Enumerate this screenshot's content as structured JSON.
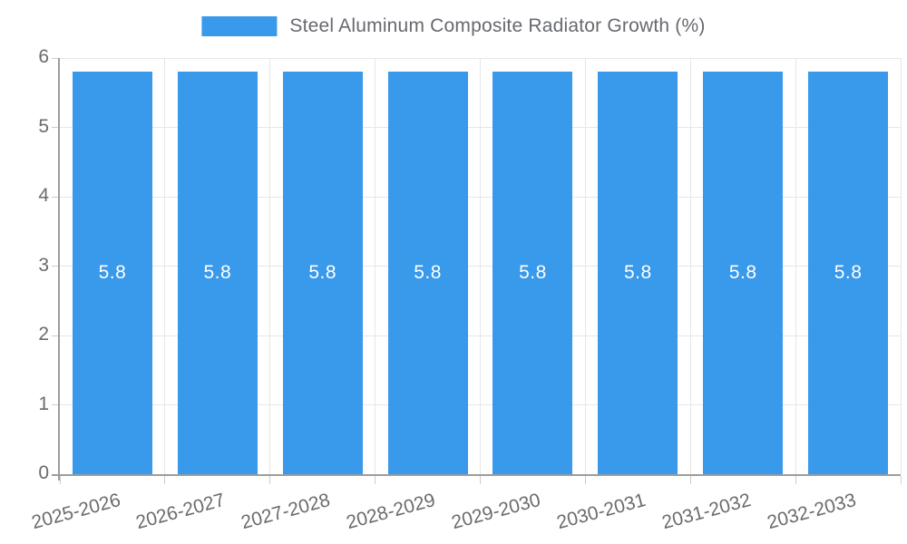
{
  "chart_data": {
    "type": "bar",
    "title": "Steel Aluminum Composite Radiator Growth (%)",
    "legend_label": "Steel Aluminum Composite Radiator Growth (%)",
    "legend_position": "top",
    "categories": [
      "2025-2026",
      "2026-2027",
      "2027-2028",
      "2028-2029",
      "2029-2030",
      "2030-2031",
      "2031-2032",
      "2032-2033"
    ],
    "values": [
      5.8,
      5.8,
      5.8,
      5.8,
      5.8,
      5.8,
      5.8,
      5.8
    ],
    "value_labels": [
      "5.8",
      "5.8",
      "5.8",
      "5.8",
      "5.8",
      "5.8",
      "5.8",
      "5.8"
    ],
    "xlabel": "",
    "ylabel": "",
    "ylim": [
      0,
      6
    ],
    "yticks": [
      0,
      1,
      2,
      3,
      4,
      5,
      6
    ],
    "grid": true,
    "x_label_rotation_deg": -15,
    "colors": {
      "bar": "#3999EB",
      "bar_value_text": "#FFFFFF",
      "grid_line": "#E6E6E6",
      "axis_line": "#9D9D9D",
      "tick_mark": "#CCCCCC",
      "tick_text": "#6B6B6B",
      "legend_text": "#66696E"
    }
  }
}
